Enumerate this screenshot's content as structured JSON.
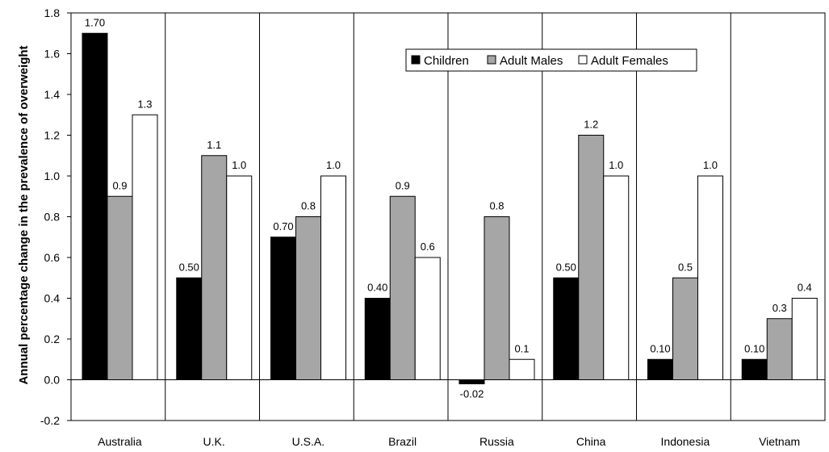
{
  "chart_data": {
    "type": "bar",
    "ylabel": "Annual percentage change in the prevalence of overweight",
    "xlabel": "",
    "ylim": [
      -0.2,
      1.8
    ],
    "yticks": [
      "1.8",
      "1.6",
      "1.4",
      "1.2",
      "1.0",
      "0.8",
      "0.6",
      "0.4",
      "0.2",
      "0.0",
      "-0.2"
    ],
    "categories": [
      "Australia",
      "U.K.",
      "U.S.A.",
      "Brazil",
      "Russia",
      "China",
      "Indonesia",
      "Vietnam"
    ],
    "series": [
      {
        "name": "Children",
        "color": "#000000",
        "values": [
          1.7,
          0.5,
          0.7,
          0.4,
          -0.02,
          0.5,
          0.1,
          0.1
        ],
        "labels": [
          "1.70",
          "0.50",
          "0.70",
          "0.40",
          "-0.02",
          "0.50",
          "0.10",
          "0.10"
        ]
      },
      {
        "name": "Adult Males",
        "color": "#a6a6a6",
        "values": [
          0.9,
          1.1,
          0.8,
          0.9,
          0.8,
          1.2,
          0.5,
          0.3
        ],
        "labels": [
          "0.9",
          "1.1",
          "0.8",
          "0.9",
          "0.8",
          "1.2",
          "0.5",
          "0.3"
        ]
      },
      {
        "name": "Adult Females",
        "color": "#ffffff",
        "values": [
          1.3,
          1.0,
          1.0,
          0.6,
          0.1,
          1.0,
          1.0,
          0.4
        ],
        "labels": [
          "1.3",
          "1.0",
          "1.0",
          "0.6",
          "0.1",
          "1.0",
          "1.0",
          "0.4"
        ]
      }
    ],
    "legend": "top-right",
    "grid": false,
    "category_separators": true
  }
}
